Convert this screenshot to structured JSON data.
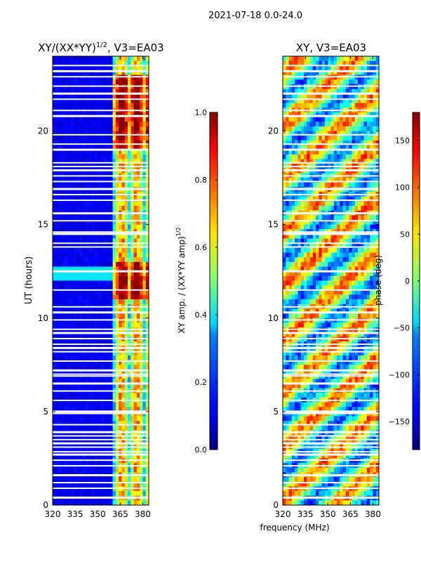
{
  "figure": {
    "suptitle": "2021-07-18 0.0-24.0",
    "xlabel_shared": "frequency (MHz)"
  },
  "chart_data": [
    {
      "type": "heatmap",
      "title": "XY/(XX*YY)^1/2, V3=EA03",
      "title_main": "XY/(XX*YY)",
      "title_exp": "1/2",
      "title_tail": ", V3=EA03",
      "xlabel": "",
      "ylabel": "UT (hours)",
      "xlim": [
        320,
        384
      ],
      "ylim": [
        0,
        24
      ],
      "xticks": [
        320,
        335,
        350,
        365,
        380
      ],
      "yticks": [
        0,
        5,
        10,
        15,
        20
      ],
      "colorbar": {
        "label_main": "XY amp. / (XX*YY amp)",
        "label_exp": "1/2",
        "range": [
          0.0,
          1.0
        ],
        "ticks": [
          "0.0",
          "0.2",
          "0.4",
          "0.6",
          "0.8",
          "1.0"
        ],
        "colormap": "jet"
      }
    },
    {
      "type": "heatmap",
      "title": "XY, V3=EA03",
      "xlabel": "frequency (MHz)",
      "ylabel": "",
      "xlim": [
        320,
        384
      ],
      "ylim": [
        0,
        24
      ],
      "xticks": [
        320,
        335,
        350,
        365,
        380
      ],
      "yticks": [
        0,
        5,
        10,
        15,
        20
      ],
      "colorbar": {
        "label": "phase (deg)",
        "range": [
          -180,
          180
        ],
        "ticks": [
          "-150",
          "-100",
          "-50",
          "0",
          "50",
          "100",
          "150"
        ],
        "colormap": "jet"
      }
    }
  ],
  "colors": {
    "jet_low": "#00007f",
    "jet_high": "#7f0000",
    "flag_gap": "#ffffff"
  },
  "flagged_hours": [
    0.4,
    0.9,
    1.2,
    1.6,
    2.1,
    2.4,
    2.7,
    2.85,
    3.1,
    3.3,
    3.5,
    3.7,
    3.9,
    4.3,
    4.9,
    5.0,
    5.6,
    6.1,
    6.5,
    6.9,
    7.0,
    7.2,
    7.7,
    8.2,
    8.4,
    8.6,
    8.9,
    9.2,
    9.4,
    9.9,
    10.3,
    10.6,
    11.5,
    12.5,
    13.8,
    14.0,
    14.5,
    14.6,
    15.2,
    15.6,
    16.3,
    16.6,
    16.9,
    17.3,
    17.6,
    17.9,
    18.1,
    18.3,
    19.0,
    19.3,
    19.8,
    20.8,
    21.1,
    21.7,
    22.0,
    22.4,
    22.9,
    23.2,
    23.5
  ]
}
